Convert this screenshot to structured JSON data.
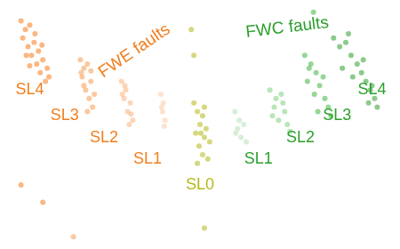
{
  "chart_data": {
    "type": "scatter",
    "tick_labels": false,
    "grid": false,
    "xlim": [
      0,
      450
    ],
    "ylim": [
      0,
      280
    ],
    "groups": [
      {
        "name": "FWE faults",
        "color": "#f07f1e",
        "label_xy": [
          150,
          225
        ]
      },
      {
        "name": "FWC faults",
        "color": "#2ca02c",
        "label_xy": [
          325,
          252
        ]
      }
    ],
    "series": [
      {
        "name": "SL4",
        "group": 0,
        "color": "#f57c1f",
        "label_xy": [
          30,
          180
        ],
        "values": [
          [
            20,
            260
          ],
          [
            25,
            250
          ],
          [
            30,
            255
          ],
          [
            22,
            240
          ],
          [
            35,
            235
          ],
          [
            28,
            230
          ],
          [
            40,
            225
          ],
          [
            32,
            220
          ],
          [
            45,
            215
          ],
          [
            38,
            210
          ],
          [
            50,
            205
          ],
          [
            42,
            200
          ],
          [
            48,
            190
          ],
          [
            36,
            245
          ],
          [
            26,
            220
          ],
          [
            44,
            232
          ],
          [
            52,
            195
          ],
          [
            30,
            208
          ],
          [
            20,
            70
          ],
          [
            45,
            50
          ]
        ]
      },
      {
        "name": "SL3",
        "group": 0,
        "color": "#f89a4e",
        "label_xy": [
          70,
          150
        ],
        "values": [
          [
            88,
            215
          ],
          [
            92,
            205
          ],
          [
            96,
            210
          ],
          [
            90,
            195
          ],
          [
            100,
            190
          ],
          [
            94,
            180
          ],
          [
            98,
            170
          ],
          [
            102,
            160
          ],
          [
            92,
            185
          ],
          [
            96,
            155
          ],
          [
            104,
            175
          ],
          [
            89,
            200
          ],
          [
            100,
            202
          ],
          [
            80,
            10
          ]
        ]
      },
      {
        "name": "SL2",
        "group": 0,
        "color": "#f9b27c",
        "label_xy": [
          115,
          125
        ],
        "values": [
          [
            135,
            190
          ],
          [
            140,
            180
          ],
          [
            138,
            170
          ],
          [
            145,
            165
          ],
          [
            142,
            155
          ],
          [
            148,
            145
          ],
          [
            136,
            175
          ],
          [
            144,
            140
          ],
          [
            139,
            185
          ],
          [
            146,
            152
          ]
        ]
      },
      {
        "name": "SL1",
        "group": 0,
        "color": "#fbcba8",
        "label_xy": [
          165,
          100
        ],
        "values": [
          [
            180,
            175
          ],
          [
            183,
            165
          ],
          [
            182,
            155
          ],
          [
            185,
            145
          ],
          [
            184,
            138
          ],
          [
            181,
            160
          ]
        ]
      },
      {
        "name": "SL0",
        "color": "#b5b816",
        "label_xy": [
          225,
          70
        ],
        "values": [
          [
            218,
            165
          ],
          [
            222,
            155
          ],
          [
            228,
            150
          ],
          [
            225,
            140
          ],
          [
            232,
            135
          ],
          [
            220,
            130
          ],
          [
            230,
            125
          ],
          [
            236,
            120
          ],
          [
            224,
            115
          ],
          [
            228,
            105
          ],
          [
            234,
            100
          ],
          [
            222,
            95
          ],
          [
            230,
            160
          ],
          [
            226,
            130
          ],
          [
            215,
            250
          ],
          [
            218,
            220
          ],
          [
            230,
            20
          ]
        ]
      },
      {
        "name": "SL1",
        "group": 1,
        "color": "#b7e0b7",
        "label_xy": [
          292,
          100
        ],
        "values": [
          [
            265,
            155
          ],
          [
            270,
            145
          ],
          [
            268,
            135
          ],
          [
            275,
            140
          ],
          [
            272,
            125
          ],
          [
            278,
            120
          ],
          [
            266,
            130
          ]
        ]
      },
      {
        "name": "SL2",
        "group": 1,
        "color": "#7fcf7f",
        "label_xy": [
          340,
          125
        ],
        "values": [
          [
            305,
            180
          ],
          [
            312,
            170
          ],
          [
            318,
            175
          ],
          [
            310,
            160
          ],
          [
            322,
            155
          ],
          [
            315,
            145
          ],
          [
            325,
            140
          ],
          [
            308,
            150
          ],
          [
            320,
            165
          ],
          [
            328,
            132
          ]
        ]
      },
      {
        "name": "SL3",
        "group": 1,
        "color": "#3fb53f",
        "label_xy": [
          382,
          150
        ],
        "values": [
          [
            345,
            220
          ],
          [
            352,
            210
          ],
          [
            358,
            200
          ],
          [
            348,
            190
          ],
          [
            362,
            185
          ],
          [
            356,
            175
          ],
          [
            368,
            170
          ],
          [
            372,
            160
          ],
          [
            360,
            155
          ],
          [
            350,
            205
          ],
          [
            375,
            150
          ],
          [
            366,
            195
          ],
          [
            355,
            270
          ]
        ]
      },
      {
        "name": "SL4",
        "group": 1,
        "color": "#2e9e2e",
        "label_xy": [
          422,
          180
        ],
        "values": [
          [
            378,
            240
          ],
          [
            385,
            230
          ],
          [
            392,
            235
          ],
          [
            398,
            220
          ],
          [
            405,
            210
          ],
          [
            410,
            200
          ],
          [
            415,
            190
          ],
          [
            420,
            180
          ],
          [
            425,
            170
          ],
          [
            428,
            160
          ],
          [
            400,
            195
          ],
          [
            412,
            215
          ],
          [
            388,
            205
          ],
          [
            418,
            165
          ],
          [
            395,
            245
          ],
          [
            422,
            185
          ]
        ]
      }
    ]
  }
}
